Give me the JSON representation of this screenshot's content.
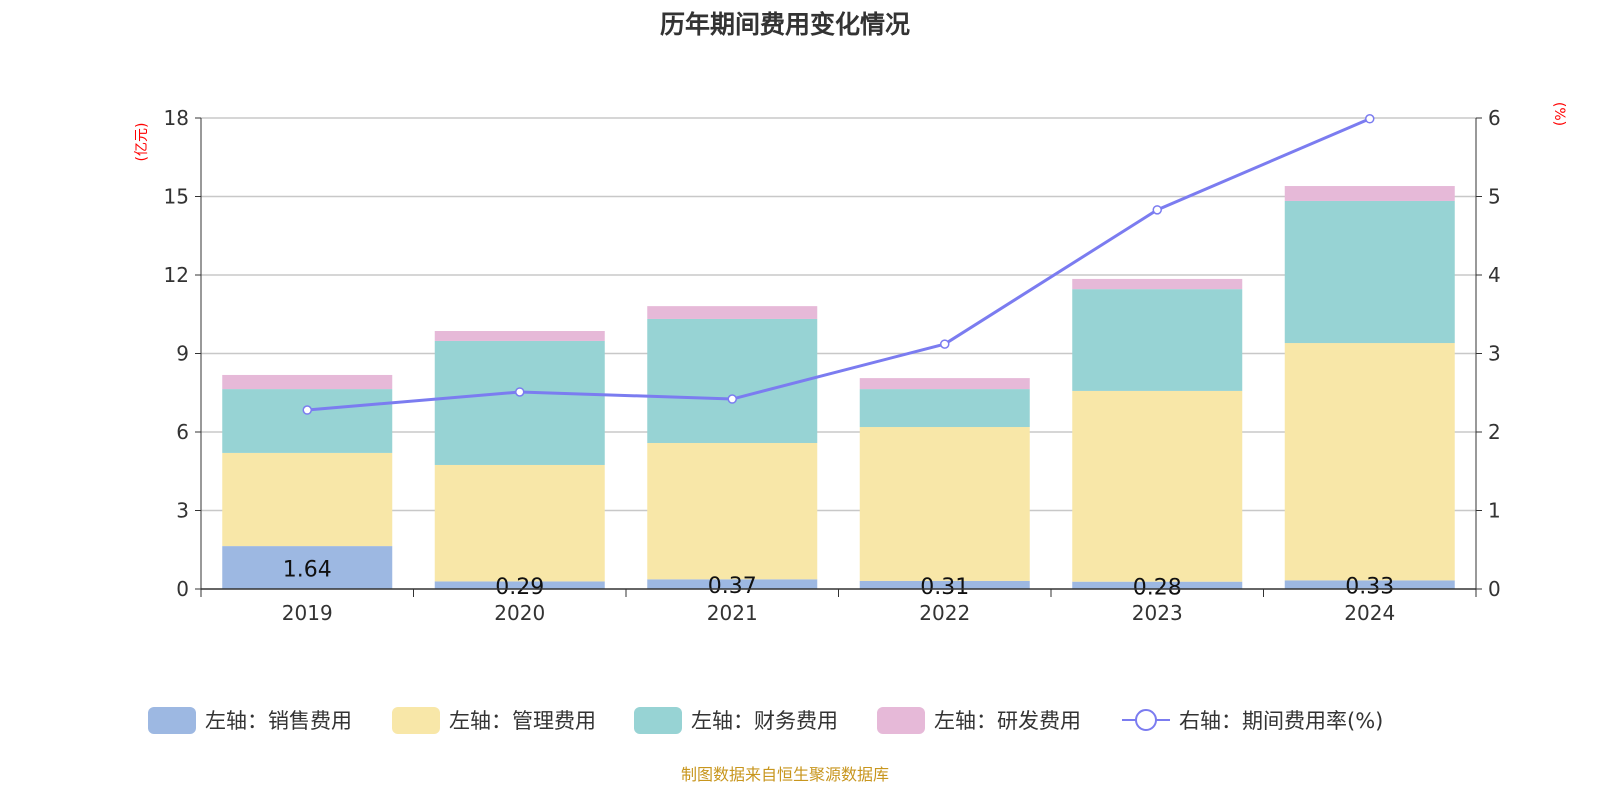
{
  "chart_data": {
    "type": "bar",
    "title": "历年期间费用变化情况",
    "left_axis_unit": "(亿元)",
    "right_axis_unit": "(%)",
    "categories": [
      "2019",
      "2020",
      "2021",
      "2022",
      "2023",
      "2024"
    ],
    "left_ylim": [
      0,
      18
    ],
    "left_ticks": [
      0,
      3,
      6,
      9,
      12,
      15,
      18
    ],
    "right_ylim": [
      0,
      6
    ],
    "right_ticks": [
      0,
      1,
      2,
      3,
      4,
      5,
      6
    ],
    "grid": true,
    "legend_placement": "bottom",
    "series": [
      {
        "name": "左轴：销售费用",
        "type": "bar",
        "axis": "left",
        "color": "#9db8e2",
        "values": [
          1.64,
          0.29,
          0.37,
          0.31,
          0.28,
          0.33
        ],
        "show_labels": true
      },
      {
        "name": "左轴：管理费用",
        "type": "bar",
        "axis": "left",
        "color": "#f8e7a8",
        "values": [
          3.56,
          4.45,
          5.21,
          5.88,
          7.29,
          9.07
        ]
      },
      {
        "name": "左轴：财务费用",
        "type": "bar",
        "axis": "left",
        "color": "#97d3d4",
        "values": [
          2.44,
          4.74,
          4.74,
          1.45,
          3.89,
          5.43
        ]
      },
      {
        "name": "左轴：研发费用",
        "type": "bar",
        "axis": "left",
        "color": "#e6b9d8",
        "values": [
          0.54,
          0.38,
          0.49,
          0.42,
          0.39,
          0.57
        ]
      },
      {
        "name": "右轴：期间费用率(%)",
        "type": "line",
        "axis": "right",
        "color": "#7b7cf0",
        "values": [
          2.28,
          2.51,
          2.42,
          3.12,
          4.83,
          5.99
        ]
      }
    ],
    "source": "制图数据来自恒生聚源数据库"
  }
}
